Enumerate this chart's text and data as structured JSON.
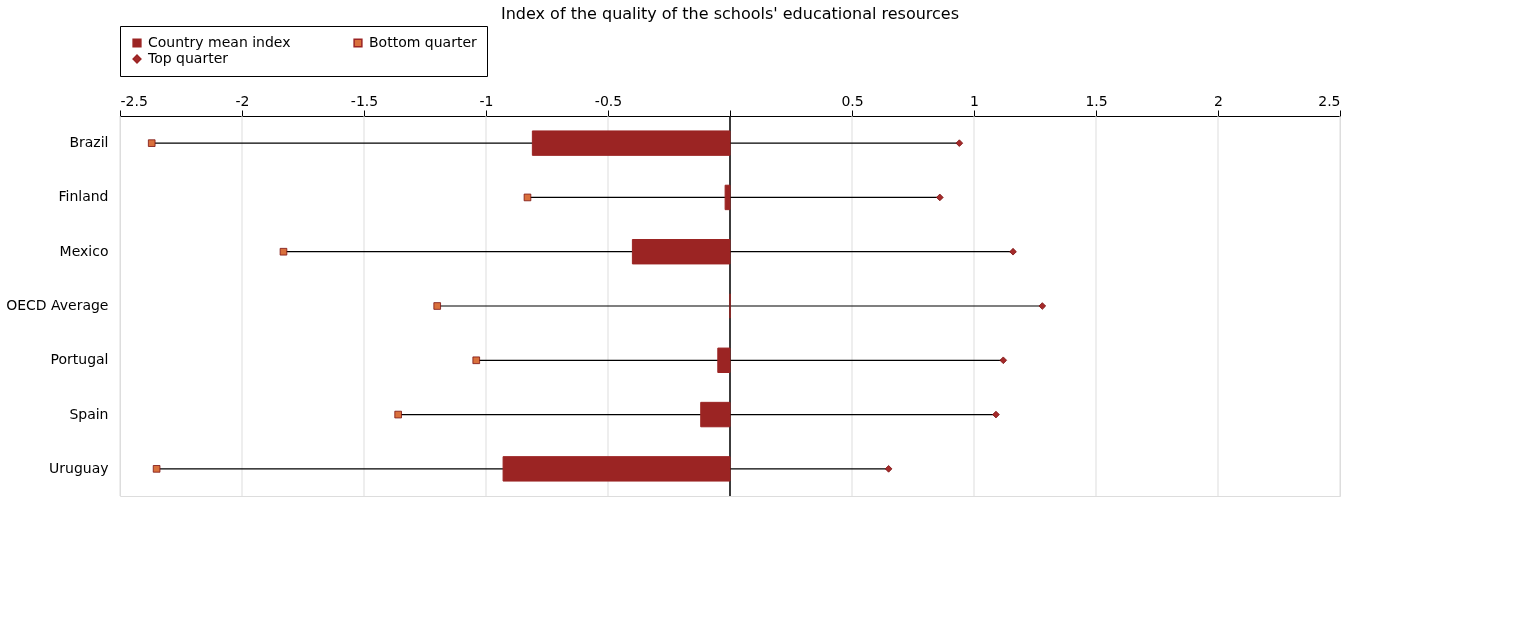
{
  "chart_data": {
    "type": "bar",
    "orientation": "horizontal",
    "title": "Index of the quality of the schools' educational resources",
    "categories": [
      "Brazil",
      "Finland",
      "Mexico",
      "OECD Average",
      "Portugal",
      "Spain",
      "Uruguay"
    ],
    "series": [
      {
        "name": "Country mean index",
        "color": "#9b2423",
        "values": [
          -0.81,
          -0.02,
          -0.4,
          0,
          -0.05,
          -0.12,
          -0.93
        ]
      },
      {
        "name": "Bottom quarter",
        "type": "scatter",
        "marker": "square",
        "color": "#d9703c",
        "values": [
          -2.37,
          -0.83,
          -1.83,
          -1.2,
          -1.04,
          -1.36,
          -2.35
        ]
      },
      {
        "name": "Top quarter",
        "type": "scatter",
        "marker": "diamond",
        "color": "#a52a2a",
        "values": [
          0.94,
          0.86,
          1.16,
          1.28,
          1.12,
          1.09,
          0.65
        ]
      }
    ],
    "xlim": [
      -2.5,
      2.5
    ],
    "xticks": [
      -2.5,
      -2,
      -1.5,
      -1,
      -0.5,
      {
        "value": 0,
        "label": null
      },
      0.5,
      1,
      1.5,
      2,
      2.5
    ],
    "ref_lines": [
      {
        "axis": "x",
        "value": 0,
        "color": "#000000"
      }
    ],
    "grid": "x",
    "legend": "top"
  }
}
